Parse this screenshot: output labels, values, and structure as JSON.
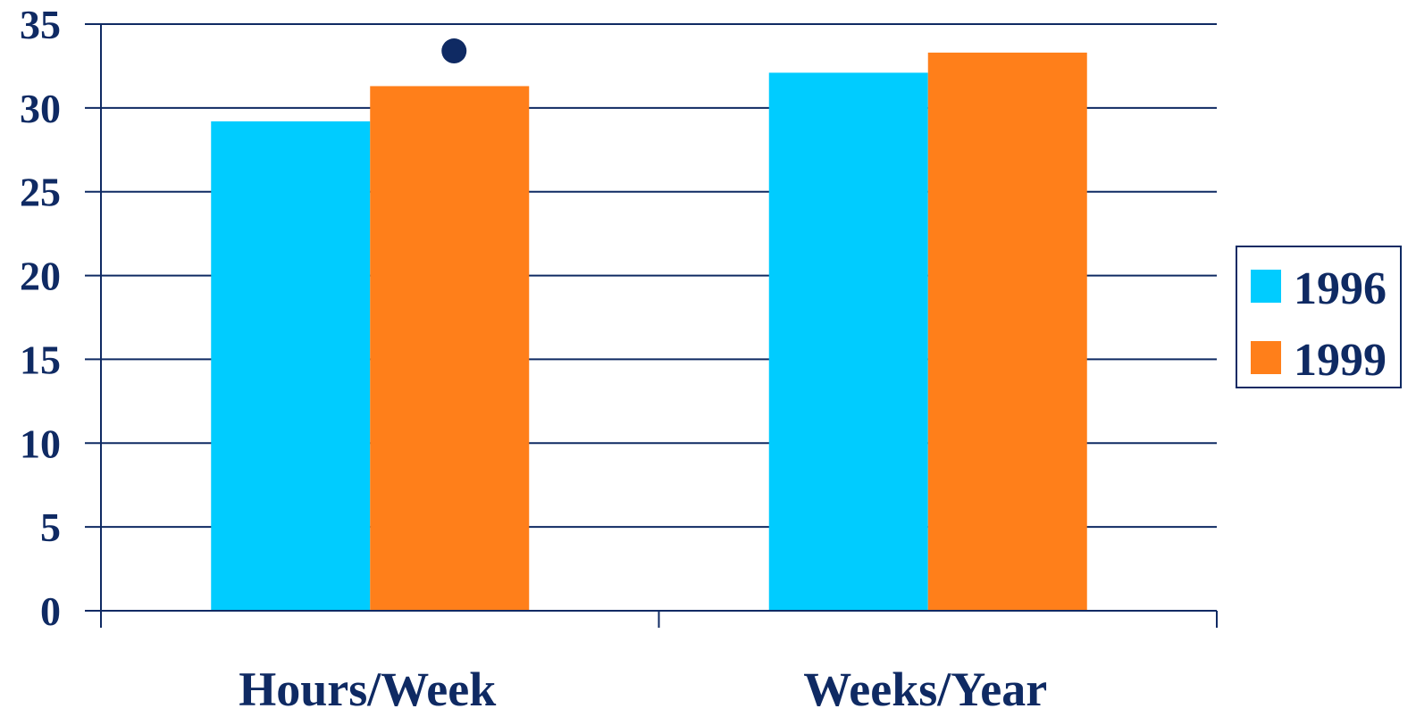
{
  "chart_data": {
    "type": "bar",
    "categories": [
      "Hours/Week",
      "Weeks/Year"
    ],
    "series": [
      {
        "name": "1996",
        "values": [
          29.2,
          32.1
        ],
        "color": "#00ccff"
      },
      {
        "name": "1999",
        "values": [
          31.3,
          33.3
        ],
        "color": "#ff7f1a"
      }
    ],
    "title": "",
    "xlabel": "",
    "ylabel": "",
    "ylim": [
      0,
      35
    ],
    "yticks": [
      0,
      5,
      10,
      15,
      20,
      25,
      30,
      35
    ],
    "grid": true,
    "legend": "right",
    "annotations": [
      {
        "category": "Hours/Week",
        "series": "1999",
        "marker": "dot",
        "y": 33.4
      }
    ],
    "colors": {
      "axis": "#0f2a63",
      "text": "#0f2a63"
    }
  }
}
